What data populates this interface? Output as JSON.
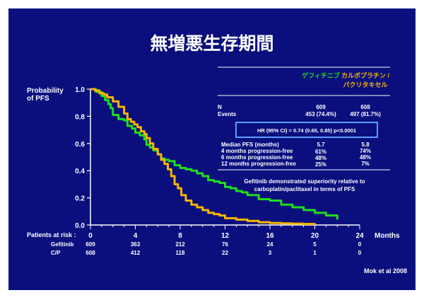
{
  "colors": {
    "background": "#0a0f7d",
    "gefitinib": "#1ddd1d",
    "cp": "#f7b500",
    "text": "#ffffff",
    "highlight_box": "#5aa0ff"
  },
  "title": "無増悪生存期間",
  "ylabel_line1": "Probability",
  "ylabel_line2": "of PFS",
  "xlabel": "Months",
  "risk": {
    "label": "Patients at risk :",
    "gef_label": "Gefitinib",
    "cp_label": "C/P",
    "gef_counts": [
      "609",
      "363",
      "212",
      "76",
      "24",
      "5",
      "0"
    ],
    "cp_counts": [
      "608",
      "412",
      "118",
      "22",
      "3",
      "1",
      "0"
    ]
  },
  "table": {
    "gef_header": "ゲフィチニブ",
    "cp_header_1": "カルボプラチン /",
    "cp_header_2": "パクリタキセル",
    "n_label": "N",
    "events_label": "Events",
    "n_gef": "609",
    "n_cp": "608",
    "events_gef": "453 (74.4%)",
    "events_cp": "497 (81.7%)",
    "hr": "HR (95% CI) = 0.74 (0.65, 0.85) p<0.0001",
    "median_label": "Median PFS (months)",
    "m4_label": "4 months progression-free",
    "m6_label": "6 months progression-free",
    "m12_label": "12 months progression-free",
    "median_gef": "5.7",
    "median_cp": "5.8",
    "m4_gef": "61%",
    "m4_cp": "74%",
    "m6_gef": "48%",
    "m6_cp": "48%",
    "m12_gef": "25%",
    "m12_cp": "7%"
  },
  "note_line1": "Gefitinib demonstrated superiority relative to",
  "note_line2": "carboplatin/paclitaxel in terms of PFS",
  "citation": "Mok et al 2008",
  "chart_data": {
    "type": "line",
    "xlim": [
      0,
      24
    ],
    "ylim": [
      0,
      1
    ],
    "x_ticks": [
      "0",
      "4",
      "8",
      "12",
      "16",
      "20",
      "24"
    ],
    "y_ticks": [
      "0.0",
      "0.2",
      "0.4",
      "0.6",
      "0.8",
      "1.0"
    ],
    "grid": false,
    "series": [
      {
        "name": "Gefitinib",
        "color": "#1ddd1d",
        "step": true,
        "x": [
          0,
          0.5,
          1,
          1.3,
          1.6,
          1.8,
          2,
          2.5,
          3,
          3.3,
          3.7,
          4,
          4.4,
          4.8,
          5,
          5.3,
          5.6,
          6,
          6.3,
          6.6,
          7,
          7.5,
          8,
          8.5,
          9,
          9.5,
          10,
          10.5,
          11,
          11.5,
          12,
          12.5,
          13,
          13.5,
          14,
          15,
          16,
          17,
          18,
          19,
          20,
          21,
          22
        ],
        "y": [
          1.0,
          0.98,
          0.95,
          0.92,
          0.89,
          0.86,
          0.81,
          0.78,
          0.77,
          0.73,
          0.71,
          0.68,
          0.66,
          0.63,
          0.59,
          0.57,
          0.55,
          0.52,
          0.49,
          0.48,
          0.47,
          0.44,
          0.42,
          0.41,
          0.4,
          0.38,
          0.36,
          0.33,
          0.32,
          0.31,
          0.28,
          0.27,
          0.25,
          0.24,
          0.22,
          0.19,
          0.18,
          0.15,
          0.13,
          0.11,
          0.09,
          0.07,
          0.04
        ]
      },
      {
        "name": "C/P",
        "color": "#f7b500",
        "step": true,
        "x": [
          0,
          0.4,
          0.8,
          1.2,
          1.5,
          2,
          2.5,
          3,
          3.3,
          3.6,
          3.9,
          4.2,
          4.5,
          4.8,
          5,
          5.3,
          5.6,
          6,
          6.3,
          6.6,
          6.9,
          7.2,
          7.5,
          7.8,
          8.1,
          8.5,
          9,
          9.5,
          10,
          10.5,
          11,
          11.5,
          12,
          13,
          14,
          15,
          16,
          17,
          18,
          19,
          20
        ],
        "y": [
          1.0,
          0.99,
          0.97,
          0.96,
          0.94,
          0.91,
          0.87,
          0.82,
          0.78,
          0.76,
          0.74,
          0.72,
          0.69,
          0.67,
          0.64,
          0.6,
          0.56,
          0.52,
          0.48,
          0.45,
          0.41,
          0.36,
          0.3,
          0.27,
          0.22,
          0.18,
          0.15,
          0.13,
          0.11,
          0.09,
          0.08,
          0.07,
          0.05,
          0.04,
          0.03,
          0.02,
          0.015,
          0.012,
          0.01,
          0.008,
          0.005
        ]
      }
    ]
  }
}
